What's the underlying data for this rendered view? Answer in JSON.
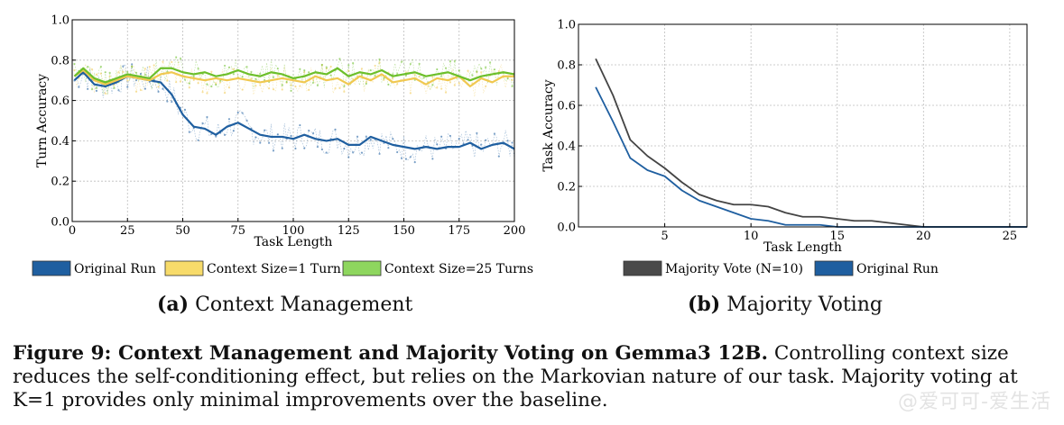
{
  "chart_data": [
    {
      "type": "line",
      "xlabel": "Task Length",
      "ylabel": "Turn Accuracy",
      "xlim": [
        0,
        200
      ],
      "ylim": [
        0,
        1.0
      ],
      "xticks": [
        0,
        25,
        50,
        75,
        100,
        125,
        150,
        175,
        200
      ],
      "yticks": [
        0.0,
        0.2,
        0.4,
        0.6,
        0.8,
        1.0
      ],
      "grid": true,
      "legend": "bottom",
      "x": [
        1,
        5,
        10,
        15,
        20,
        25,
        30,
        35,
        40,
        45,
        50,
        55,
        60,
        65,
        70,
        75,
        80,
        85,
        90,
        95,
        100,
        105,
        110,
        115,
        120,
        125,
        130,
        135,
        140,
        145,
        150,
        155,
        160,
        165,
        170,
        175,
        180,
        185,
        190,
        195,
        200
      ],
      "series": [
        {
          "name": "Original Run",
          "color": "#1f5fa0",
          "values": [
            0.7,
            0.74,
            0.68,
            0.67,
            0.69,
            0.72,
            0.71,
            0.7,
            0.69,
            0.63,
            0.53,
            0.47,
            0.46,
            0.43,
            0.47,
            0.49,
            0.46,
            0.43,
            0.42,
            0.42,
            0.41,
            0.43,
            0.41,
            0.4,
            0.41,
            0.38,
            0.38,
            0.42,
            0.4,
            0.38,
            0.37,
            0.36,
            0.37,
            0.36,
            0.37,
            0.37,
            0.39,
            0.36,
            0.38,
            0.39,
            0.36
          ]
        },
        {
          "name": "Context Size=1 Turn",
          "color": "#f0c850",
          "values": [
            0.72,
            0.75,
            0.7,
            0.68,
            0.7,
            0.72,
            0.71,
            0.7,
            0.73,
            0.74,
            0.72,
            0.71,
            0.7,
            0.71,
            0.7,
            0.71,
            0.7,
            0.69,
            0.7,
            0.71,
            0.7,
            0.69,
            0.72,
            0.7,
            0.71,
            0.68,
            0.72,
            0.7,
            0.73,
            0.69,
            0.7,
            0.71,
            0.68,
            0.71,
            0.7,
            0.72,
            0.67,
            0.71,
            0.69,
            0.72,
            0.72
          ]
        },
        {
          "name": "Context Size=25 Turns",
          "color": "#6cbf2a",
          "values": [
            0.72,
            0.76,
            0.71,
            0.69,
            0.71,
            0.73,
            0.72,
            0.71,
            0.76,
            0.76,
            0.74,
            0.73,
            0.74,
            0.72,
            0.73,
            0.75,
            0.73,
            0.72,
            0.74,
            0.73,
            0.71,
            0.72,
            0.74,
            0.73,
            0.76,
            0.72,
            0.74,
            0.73,
            0.75,
            0.72,
            0.73,
            0.74,
            0.72,
            0.73,
            0.74,
            0.72,
            0.7,
            0.72,
            0.73,
            0.74,
            0.73
          ]
        }
      ]
    },
    {
      "type": "line",
      "xlabel": "Task Length",
      "ylabel": "Task Accuracy",
      "xlim": [
        0,
        26
      ],
      "ylim": [
        0,
        1.0
      ],
      "xticks": [
        5,
        10,
        15,
        20,
        25
      ],
      "yticks": [
        0.0,
        0.2,
        0.4,
        0.6,
        0.8,
        1.0
      ],
      "grid": true,
      "legend": "bottom",
      "x": [
        1,
        2,
        3,
        4,
        5,
        6,
        7,
        8,
        9,
        10,
        11,
        12,
        13,
        14,
        15,
        16,
        17,
        18,
        19,
        20,
        21,
        22,
        23,
        24,
        25,
        26
      ],
      "series": [
        {
          "name": "Majority Vote (N=10)",
          "color": "#444444",
          "values": [
            0.83,
            0.65,
            0.43,
            0.35,
            0.29,
            0.22,
            0.16,
            0.13,
            0.11,
            0.11,
            0.1,
            0.07,
            0.05,
            0.05,
            0.04,
            0.03,
            0.03,
            0.02,
            0.01,
            0.0,
            0.0,
            0.0,
            0.0,
            0.0,
            0.0,
            0.0
          ]
        },
        {
          "name": "Original Run",
          "color": "#1f5fa0",
          "values": [
            0.69,
            0.52,
            0.34,
            0.28,
            0.25,
            0.18,
            0.13,
            0.1,
            0.07,
            0.04,
            0.03,
            0.01,
            0.01,
            0.01,
            0.0,
            0.0,
            0.0,
            0.0,
            0.0,
            0.0,
            0.0,
            0.0,
            0.0,
            0.0,
            0.0,
            0.0
          ]
        }
      ]
    }
  ],
  "subcaptions": {
    "a_prefix": "(a)",
    "a_text": "Context Management",
    "b_prefix": "(b)",
    "b_text": "Majority Voting"
  },
  "caption": {
    "bold": "Figure 9: Context Management and Majority Voting on Gemma3 12B.",
    "text": "Controlling context size reduces the self-conditioning effect, but relies on the Markovian nature of our task. Majority voting at K=1 provides only minimal improvements over the baseline."
  },
  "watermark": "@爱可可-爱生活"
}
